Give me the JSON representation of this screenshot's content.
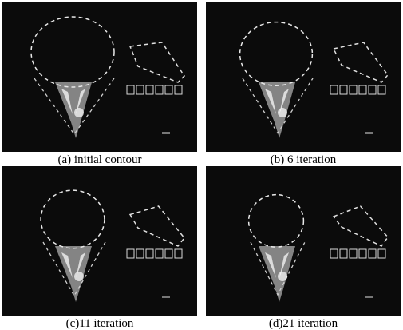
{
  "figure": {
    "panels": [
      {
        "caption": "(a) initial contour"
      },
      {
        "caption": "(b) 6 iteration"
      },
      {
        "caption": "(c)11 iteration"
      },
      {
        "caption": "(d)21 iteration"
      }
    ]
  }
}
